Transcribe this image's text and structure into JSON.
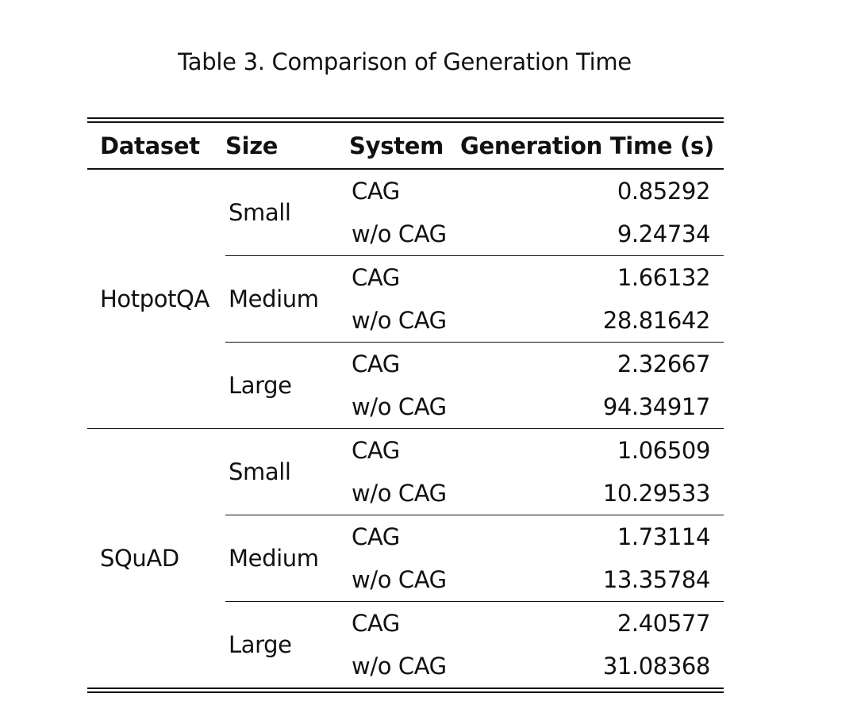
{
  "caption": "Table 3. Comparison of Generation Time",
  "headers": {
    "dataset": "Dataset",
    "size": "Size",
    "system": "System",
    "time": "Generation Time (s)"
  },
  "groups": [
    {
      "dataset": "HotpotQA",
      "sizes": [
        {
          "size": "Small",
          "rows": [
            {
              "system": "CAG",
              "time": "0.85292"
            },
            {
              "system": "w/o CAG",
              "time": "9.24734"
            }
          ]
        },
        {
          "size": "Medium",
          "rows": [
            {
              "system": "CAG",
              "time": "1.66132"
            },
            {
              "system": "w/o CAG",
              "time": "28.81642"
            }
          ]
        },
        {
          "size": "Large",
          "rows": [
            {
              "system": "CAG",
              "time": "2.32667"
            },
            {
              "system": "w/o CAG",
              "time": "94.34917"
            }
          ]
        }
      ]
    },
    {
      "dataset": "SQuAD",
      "sizes": [
        {
          "size": "Small",
          "rows": [
            {
              "system": "CAG",
              "time": "1.06509"
            },
            {
              "system": "w/o CAG",
              "time": "10.29533"
            }
          ]
        },
        {
          "size": "Medium",
          "rows": [
            {
              "system": "CAG",
              "time": "1.73114"
            },
            {
              "system": "w/o CAG",
              "time": "13.35784"
            }
          ]
        },
        {
          "size": "Large",
          "rows": [
            {
              "system": "CAG",
              "time": "2.40577"
            },
            {
              "system": "w/o CAG",
              "time": "31.08368"
            }
          ]
        }
      ]
    }
  ]
}
